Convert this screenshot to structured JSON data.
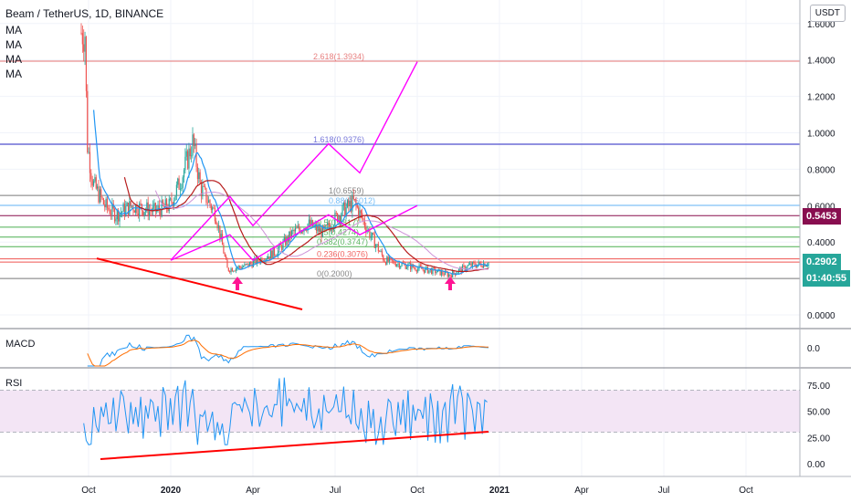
{
  "header": {
    "title": "Beam / TetherUS, 1D, BINANCE",
    "ma_labels": [
      "MA",
      "MA",
      "MA",
      "MA"
    ],
    "currency_button": "USDT"
  },
  "colors": {
    "candle_up": "#26a69a",
    "candle_down": "#ef5350",
    "trendline": "#ff0000",
    "projection": "#ff00ff",
    "fib_2618": "#e57373",
    "fib_1618": "#6b6bd6",
    "fib_1": "#7a7a7a",
    "fib_088": "#64b5f6",
    "fib_mid": "#4caf50",
    "price_tag": "#26a69a",
    "alert_tag": "#880e4f",
    "macd_line": "#2196f3",
    "macd_signal": "#ff6d00",
    "rsi_line": "#2196f3",
    "rsi_band": "#f3e5f5"
  },
  "price_tags": {
    "alert": "0.5453",
    "last": "0.2902",
    "countdown": "01:40:55"
  },
  "chart_data": [
    {
      "type": "line",
      "name": "price",
      "ylim": [
        -0.1,
        1.63
      ],
      "y_ticks": [
        "1.6000",
        "1.4000",
        "1.2000",
        "1.0000",
        "0.8000",
        "0.6000",
        "0.4000",
        "0.2000",
        "0.0000"
      ],
      "x_ticks": [
        "Oct",
        "2020",
        "Apr",
        "Jul",
        "Oct",
        "2021",
        "Apr",
        "Jul",
        "Oct"
      ],
      "fib_levels": [
        {
          "label": "2.618(1.3934)",
          "value": 1.3934
        },
        {
          "label": "1.618(0.9376)",
          "value": 0.9376
        },
        {
          "label": "1(0.6559)",
          "value": 0.6559
        },
        {
          "label": "0.88(0.6012)",
          "value": 0.6012
        },
        {
          "label": "0.5(0.4817)",
          "value": 0.4817
        },
        {
          "label": "0.5(0.4274)",
          "value": 0.4274
        },
        {
          "label": "0.382(0.3747)",
          "value": 0.3747
        },
        {
          "label": "0.236(0.3076)",
          "value": 0.3076
        },
        {
          "label": "0(0.2000)",
          "value": 0.2
        }
      ],
      "horizontal_lines": [
        0.5453,
        0.2902
      ],
      "projection_path_a": [
        [
          1.0,
          0.3
        ],
        [
          1.72,
          0.65
        ],
        [
          2.0,
          0.49
        ],
        [
          2.92,
          0.94
        ],
        [
          3.3,
          0.78
        ],
        [
          4.0,
          1.39
        ]
      ],
      "projection_path_b": [
        [
          1.0,
          0.3
        ],
        [
          1.72,
          0.44
        ],
        [
          2.0,
          0.3
        ],
        [
          2.92,
          0.55
        ],
        [
          3.3,
          0.44
        ],
        [
          4.0,
          0.6
        ]
      ],
      "support_line": [
        [
          0.1,
          0.31
        ],
        [
          2.6,
          0.03
        ]
      ]
    },
    {
      "type": "line",
      "name": "MACD",
      "y_ticks": [
        "0.0"
      ],
      "series": [
        {
          "name": "MACD"
        },
        {
          "name": "signal"
        }
      ]
    },
    {
      "type": "line",
      "name": "RSI",
      "ylim": [
        0,
        85
      ],
      "y_ticks": [
        "75.00",
        "50.00",
        "25.00",
        "0.00"
      ],
      "band": [
        30,
        70
      ]
    }
  ]
}
